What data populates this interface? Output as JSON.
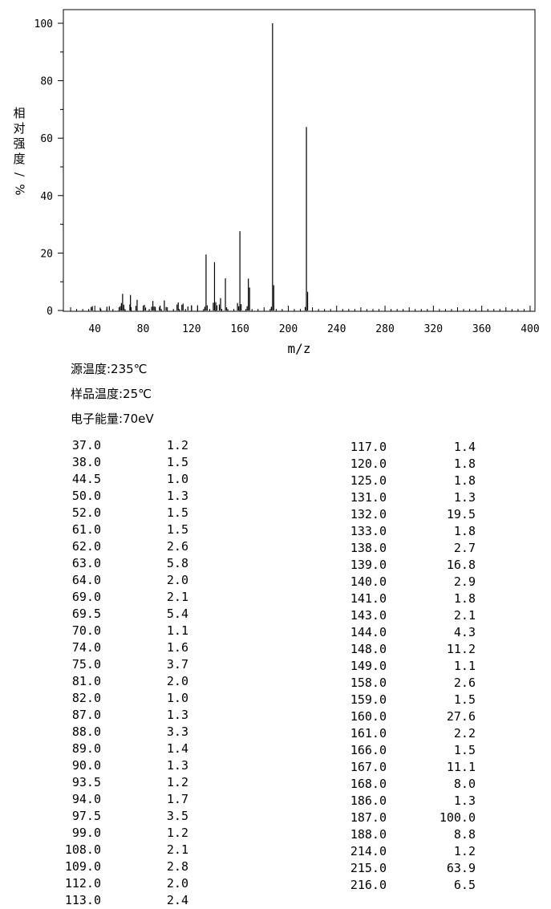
{
  "chart_data": {
    "type": "bar",
    "xlabel": "m/z",
    "ylabel": "相对强度/%",
    "xlim": [
      14,
      404
    ],
    "ylim": [
      0,
      105
    ],
    "x_ticks": [
      40,
      80,
      120,
      160,
      200,
      240,
      280,
      320,
      360,
      400
    ],
    "y_ticks": [
      0,
      20,
      40,
      60,
      80,
      100
    ],
    "grid": false,
    "peaks": [
      {
        "mz": 37.0,
        "intensity": 1.2
      },
      {
        "mz": 38.0,
        "intensity": 1.5
      },
      {
        "mz": 44.5,
        "intensity": 1.0
      },
      {
        "mz": 50.0,
        "intensity": 1.3
      },
      {
        "mz": 52.0,
        "intensity": 1.5
      },
      {
        "mz": 61.0,
        "intensity": 1.5
      },
      {
        "mz": 62.0,
        "intensity": 2.6
      },
      {
        "mz": 63.0,
        "intensity": 5.8
      },
      {
        "mz": 64.0,
        "intensity": 2.0
      },
      {
        "mz": 69.0,
        "intensity": 2.1
      },
      {
        "mz": 69.5,
        "intensity": 5.4
      },
      {
        "mz": 70.0,
        "intensity": 1.1
      },
      {
        "mz": 74.0,
        "intensity": 1.6
      },
      {
        "mz": 75.0,
        "intensity": 3.7
      },
      {
        "mz": 81.0,
        "intensity": 2.0
      },
      {
        "mz": 82.0,
        "intensity": 1.0
      },
      {
        "mz": 87.0,
        "intensity": 1.3
      },
      {
        "mz": 88.0,
        "intensity": 3.3
      },
      {
        "mz": 89.0,
        "intensity": 1.4
      },
      {
        "mz": 90.0,
        "intensity": 1.3
      },
      {
        "mz": 93.5,
        "intensity": 1.2
      },
      {
        "mz": 94.0,
        "intensity": 1.7
      },
      {
        "mz": 97.5,
        "intensity": 3.5
      },
      {
        "mz": 99.0,
        "intensity": 1.2
      },
      {
        "mz": 108.0,
        "intensity": 2.1
      },
      {
        "mz": 109.0,
        "intensity": 2.8
      },
      {
        "mz": 112.0,
        "intensity": 2.0
      },
      {
        "mz": 113.0,
        "intensity": 2.4
      },
      {
        "mz": 117.0,
        "intensity": 1.4
      },
      {
        "mz": 120.0,
        "intensity": 1.8
      },
      {
        "mz": 125.0,
        "intensity": 1.8
      },
      {
        "mz": 131.0,
        "intensity": 1.3
      },
      {
        "mz": 132.0,
        "intensity": 19.5
      },
      {
        "mz": 133.0,
        "intensity": 1.8
      },
      {
        "mz": 138.0,
        "intensity": 2.7
      },
      {
        "mz": 139.0,
        "intensity": 16.8
      },
      {
        "mz": 140.0,
        "intensity": 2.9
      },
      {
        "mz": 141.0,
        "intensity": 1.8
      },
      {
        "mz": 143.0,
        "intensity": 2.1
      },
      {
        "mz": 144.0,
        "intensity": 4.3
      },
      {
        "mz": 148.0,
        "intensity": 11.2
      },
      {
        "mz": 149.0,
        "intensity": 1.1
      },
      {
        "mz": 158.0,
        "intensity": 2.6
      },
      {
        "mz": 159.0,
        "intensity": 1.5
      },
      {
        "mz": 160.0,
        "intensity": 27.6
      },
      {
        "mz": 161.0,
        "intensity": 2.2
      },
      {
        "mz": 166.0,
        "intensity": 1.5
      },
      {
        "mz": 167.0,
        "intensity": 11.1
      },
      {
        "mz": 168.0,
        "intensity": 8.0
      },
      {
        "mz": 186.0,
        "intensity": 1.3
      },
      {
        "mz": 187.0,
        "intensity": 100.0
      },
      {
        "mz": 188.0,
        "intensity": 8.8
      },
      {
        "mz": 214.0,
        "intensity": 1.2
      },
      {
        "mz": 215.0,
        "intensity": 63.9
      },
      {
        "mz": 216.0,
        "intensity": 6.5
      }
    ]
  },
  "conditions": {
    "source_temp": "源温度:235℃",
    "sample_temp": "样品温度:25℃",
    "electron_energy": "电子能量:70eV"
  },
  "table": {
    "left": [
      [
        "37.0",
        "1.2"
      ],
      [
        "38.0",
        "1.5"
      ],
      [
        "44.5",
        "1.0"
      ],
      [
        "50.0",
        "1.3"
      ],
      [
        "52.0",
        "1.5"
      ],
      [
        "61.0",
        "1.5"
      ],
      [
        "62.0",
        "2.6"
      ],
      [
        "63.0",
        "5.8"
      ],
      [
        "64.0",
        "2.0"
      ],
      [
        "69.0",
        "2.1"
      ],
      [
        "69.5",
        "5.4"
      ],
      [
        "70.0",
        "1.1"
      ],
      [
        "74.0",
        "1.6"
      ],
      [
        "75.0",
        "3.7"
      ],
      [
        "81.0",
        "2.0"
      ],
      [
        "82.0",
        "1.0"
      ],
      [
        "87.0",
        "1.3"
      ],
      [
        "88.0",
        "3.3"
      ],
      [
        "89.0",
        "1.4"
      ],
      [
        "90.0",
        "1.3"
      ],
      [
        "93.5",
        "1.2"
      ],
      [
        "94.0",
        "1.7"
      ],
      [
        "97.5",
        "3.5"
      ],
      [
        "99.0",
        "1.2"
      ],
      [
        "108.0",
        "2.1"
      ],
      [
        "109.0",
        "2.8"
      ],
      [
        "112.0",
        "2.0"
      ],
      [
        "113.0",
        "2.4"
      ]
    ],
    "right": [
      [
        "117.0",
        "1.4"
      ],
      [
        "120.0",
        "1.8"
      ],
      [
        "125.0",
        "1.8"
      ],
      [
        "131.0",
        "1.3"
      ],
      [
        "132.0",
        "19.5"
      ],
      [
        "133.0",
        "1.8"
      ],
      [
        "138.0",
        "2.7"
      ],
      [
        "139.0",
        "16.8"
      ],
      [
        "140.0",
        "2.9"
      ],
      [
        "141.0",
        "1.8"
      ],
      [
        "143.0",
        "2.1"
      ],
      [
        "144.0",
        "4.3"
      ],
      [
        "148.0",
        "11.2"
      ],
      [
        "149.0",
        "1.1"
      ],
      [
        "158.0",
        "2.6"
      ],
      [
        "159.0",
        "1.5"
      ],
      [
        "160.0",
        "27.6"
      ],
      [
        "161.0",
        "2.2"
      ],
      [
        "166.0",
        "1.5"
      ],
      [
        "167.0",
        "11.1"
      ],
      [
        "168.0",
        "8.0"
      ],
      [
        "186.0",
        "1.3"
      ],
      [
        "187.0",
        "100.0"
      ],
      [
        "188.0",
        "8.8"
      ],
      [
        "214.0",
        "1.2"
      ],
      [
        "215.0",
        "63.9"
      ],
      [
        "216.0",
        "6.5"
      ]
    ]
  }
}
